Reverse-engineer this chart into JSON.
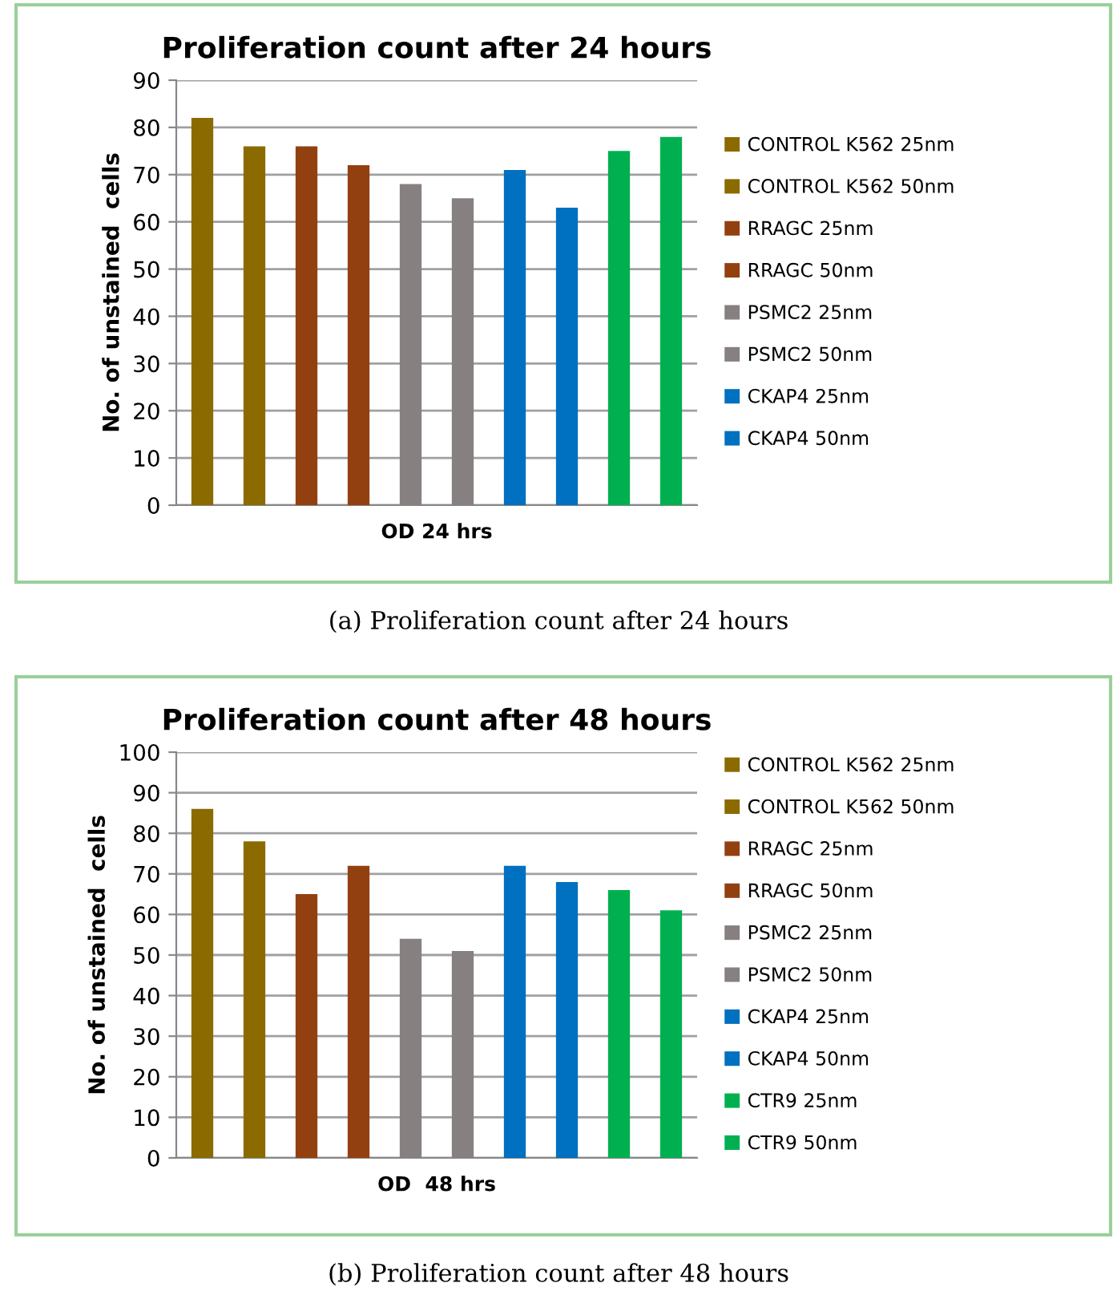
{
  "chart_data": [
    {
      "type": "bar",
      "title": "Proliferation count after 24 hours",
      "ylabel": "No. of unstained  cells",
      "categories": [
        "OD 24 hrs"
      ],
      "ylim": [
        0,
        90
      ],
      "yticks": [
        0,
        10,
        20,
        30,
        40,
        50,
        60,
        70,
        80,
        90
      ],
      "grid": "y",
      "legend": "right",
      "annotations": [
        "(a) Proliferation count after 24 hours"
      ],
      "series": [
        {
          "name": "CONTROL K562 25nm",
          "color": "#8b6b00",
          "values": [
            82
          ]
        },
        {
          "name": "CONTROL K562 50nm",
          "color": "#8b6b00",
          "values": [
            76
          ]
        },
        {
          "name": "RRAGC 25nm",
          "color": "#934010",
          "values": [
            76
          ]
        },
        {
          "name": "RRAGC 50nm",
          "color": "#934010",
          "values": [
            72
          ]
        },
        {
          "name": "PSMC2 25nm",
          "color": "#878080",
          "values": [
            68
          ]
        },
        {
          "name": "PSMC2 50nm",
          "color": "#878080",
          "values": [
            65
          ]
        },
        {
          "name": "CKAP4 25nm",
          "color": "#0070c0",
          "values": [
            71
          ]
        },
        {
          "name": "CKAP4 50nm",
          "color": "#0070c0",
          "values": [
            63
          ]
        },
        {
          "color": "#00b050",
          "values": [
            75
          ]
        },
        {
          "color": "#00b050",
          "values": [
            78
          ]
        }
      ]
    },
    {
      "type": "bar",
      "title": "Proliferation count after 48 hours",
      "ylabel": "No. of unstained  cells",
      "categories": [
        "OD  48 hrs"
      ],
      "ylim": [
        0,
        100
      ],
      "yticks": [
        0,
        10,
        20,
        30,
        40,
        50,
        60,
        70,
        80,
        90,
        100
      ],
      "grid": "y",
      "legend": "right",
      "annotations": [
        "(b) Proliferation count after 48 hours"
      ],
      "series": [
        {
          "name": "CONTROL K562 25nm",
          "color": "#8b6b00",
          "values": [
            86
          ]
        },
        {
          "name": "CONTROL K562 50nm",
          "color": "#8b6b00",
          "values": [
            78
          ]
        },
        {
          "name": "RRAGC 25nm",
          "color": "#934010",
          "values": [
            65
          ]
        },
        {
          "name": "RRAGC 50nm",
          "color": "#934010",
          "values": [
            72
          ]
        },
        {
          "name": "PSMC2 25nm",
          "color": "#878080",
          "values": [
            54
          ]
        },
        {
          "name": "PSMC2 50nm",
          "color": "#878080",
          "values": [
            51
          ]
        },
        {
          "name": "CKAP4 25nm",
          "color": "#0070c0",
          "values": [
            72
          ]
        },
        {
          "name": "CKAP4 50nm",
          "color": "#0070c0",
          "values": [
            68
          ]
        },
        {
          "name": "CTR9 25nm",
          "color": "#00b050",
          "values": [
            66
          ]
        },
        {
          "name": "CTR9 50nm",
          "color": "#00b050",
          "values": [
            61
          ]
        }
      ]
    }
  ]
}
